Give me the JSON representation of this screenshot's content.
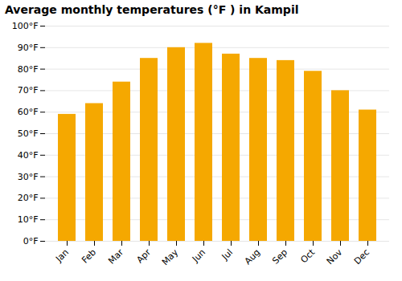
{
  "chart_data": {
    "type": "bar",
    "title": "Average monthly temperatures (°F ) in Kampil",
    "categories": [
      "Jan",
      "Feb",
      "Mar",
      "Apr",
      "May",
      "Jun",
      "Jul",
      "Aug",
      "Sep",
      "Oct",
      "Nov",
      "Dec"
    ],
    "values": [
      59,
      64,
      74,
      85,
      90,
      92,
      87,
      85,
      84,
      79,
      70,
      61
    ],
    "color": "#F5A800",
    "ylim": [
      0,
      100
    ],
    "yticks": [
      {
        "value": 0,
        "label": "0°F"
      },
      {
        "value": 10,
        "label": "10°F"
      },
      {
        "value": 20,
        "label": "20°F"
      },
      {
        "value": 30,
        "label": "30°F"
      },
      {
        "value": 40,
        "label": "40°F"
      },
      {
        "value": 50,
        "label": "50°F"
      },
      {
        "value": 60,
        "label": "60°F"
      },
      {
        "value": 70,
        "label": "70°F"
      },
      {
        "value": 80,
        "label": "80°F"
      },
      {
        "value": 90,
        "label": "90°F"
      },
      {
        "value": 100,
        "label": "100°F"
      }
    ],
    "grid": true
  }
}
